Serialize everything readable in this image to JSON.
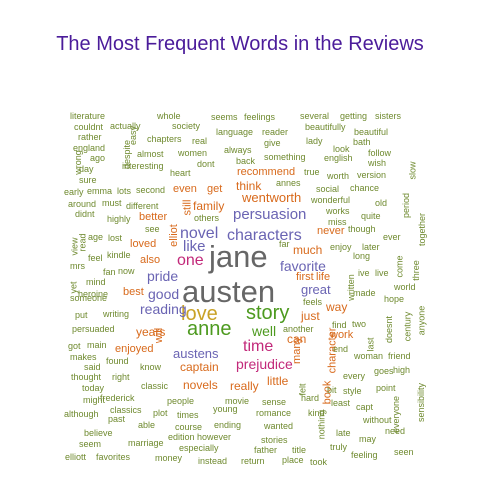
{
  "chart_data": {
    "type": "wordcloud",
    "title": "The Most Frequent Words in the Reviews",
    "colors": {
      "title": "#4b1c9a",
      "olive": "#6f8a2f",
      "teal": "#2a8f7a",
      "gray": "#666666",
      "pink": "#c2297a",
      "orange": "#d86a1c",
      "purple": "#6a64b3",
      "green": "#4d9a1f",
      "gold": "#c9a227"
    },
    "words": [
      {
        "text": "austen",
        "color": "gray",
        "rot": 0
      },
      {
        "text": "jane",
        "color": "gray",
        "rot": 0
      },
      {
        "text": "love",
        "color": "gold",
        "rot": 0
      },
      {
        "text": "anne",
        "color": "green",
        "rot": 0
      },
      {
        "text": "story",
        "color": "green",
        "rot": 0
      },
      {
        "text": "time",
        "color": "pink",
        "rot": 0
      },
      {
        "text": "characters",
        "color": "purple",
        "rot": 0
      },
      {
        "text": "novel",
        "color": "purple",
        "rot": 0
      },
      {
        "text": "one",
        "color": "pink",
        "rot": 0
      },
      {
        "text": "persuasion",
        "color": "purple",
        "rot": 0
      },
      {
        "text": "like",
        "color": "purple",
        "rot": 0
      },
      {
        "text": "pride",
        "color": "purple",
        "rot": 0
      },
      {
        "text": "good",
        "color": "purple",
        "rot": 0
      },
      {
        "text": "reading",
        "color": "purple",
        "rot": 0
      },
      {
        "text": "favorite",
        "color": "purple",
        "rot": 0
      },
      {
        "text": "prejudice",
        "color": "pink",
        "rot": 0
      },
      {
        "text": "well",
        "color": "green",
        "rot": 0
      },
      {
        "text": "wentworth",
        "color": "orange",
        "rot": 0
      },
      {
        "text": "great",
        "color": "purple",
        "rot": 0
      },
      {
        "text": "much",
        "color": "orange",
        "rot": 0
      },
      {
        "text": "austens",
        "color": "purple",
        "rot": 0
      },
      {
        "text": "captain",
        "color": "orange",
        "rot": 0
      },
      {
        "text": "can",
        "color": "orange",
        "rot": 0
      },
      {
        "text": "first",
        "color": "orange",
        "rot": 0
      },
      {
        "text": "life",
        "color": "orange",
        "rot": 0
      },
      {
        "text": "just",
        "color": "orange",
        "rot": 0
      },
      {
        "text": "way",
        "color": "orange",
        "rot": 0
      },
      {
        "text": "years",
        "color": "orange",
        "rot": 0
      },
      {
        "text": "family",
        "color": "orange",
        "rot": 0
      },
      {
        "text": "think",
        "color": "orange",
        "rot": 0
      },
      {
        "text": "recommend",
        "color": "orange",
        "rot": 0
      },
      {
        "text": "loved",
        "color": "orange",
        "rot": 0
      },
      {
        "text": "even",
        "color": "orange",
        "rot": 0
      },
      {
        "text": "get",
        "color": "orange",
        "rot": 0
      },
      {
        "text": "best",
        "color": "orange",
        "rot": 0
      },
      {
        "text": "novels",
        "color": "orange",
        "rot": 0
      },
      {
        "text": "really",
        "color": "orange",
        "rot": 0
      },
      {
        "text": "little",
        "color": "orange",
        "rot": 0
      },
      {
        "text": "work",
        "color": "orange",
        "rot": 0
      },
      {
        "text": "enjoyed",
        "color": "orange",
        "rot": 0
      },
      {
        "text": "also",
        "color": "orange",
        "rot": 0
      },
      {
        "text": "never",
        "color": "orange",
        "rot": 0
      },
      {
        "text": "will",
        "color": "orange",
        "rot": 90
      },
      {
        "text": "still",
        "color": "orange",
        "rot": 90
      },
      {
        "text": "elliot",
        "color": "orange",
        "rot": 90
      },
      {
        "text": "many",
        "color": "orange",
        "rot": 90
      },
      {
        "text": "character",
        "color": "orange",
        "rot": 90
      },
      {
        "text": "book",
        "color": "orange",
        "rot": 90
      },
      {
        "text": "better",
        "color": "orange",
        "rot": 0
      },
      {
        "text": "literature",
        "color": "olive",
        "rot": 0
      },
      {
        "text": "whole",
        "color": "olive",
        "rot": 0
      },
      {
        "text": "seems",
        "color": "olive",
        "rot": 0
      },
      {
        "text": "feelings",
        "color": "olive",
        "rot": 0
      },
      {
        "text": "several",
        "color": "olive",
        "rot": 0
      },
      {
        "text": "getting",
        "color": "olive",
        "rot": 0
      },
      {
        "text": "sisters",
        "color": "olive",
        "rot": 0
      },
      {
        "text": "couldnt",
        "color": "olive",
        "rot": 0
      },
      {
        "text": "actually",
        "color": "olive",
        "rot": 0
      },
      {
        "text": "society",
        "color": "olive",
        "rot": 0
      },
      {
        "text": "language",
        "color": "olive",
        "rot": 0
      },
      {
        "text": "reader",
        "color": "olive",
        "rot": 0
      },
      {
        "text": "beautifully",
        "color": "olive",
        "rot": 0
      },
      {
        "text": "beautiful",
        "color": "olive",
        "rot": 0
      },
      {
        "text": "rather",
        "color": "olive",
        "rot": 0
      },
      {
        "text": "chapters",
        "color": "olive",
        "rot": 0
      },
      {
        "text": "real",
        "color": "olive",
        "rot": 0
      },
      {
        "text": "give",
        "color": "olive",
        "rot": 0
      },
      {
        "text": "lady",
        "color": "olive",
        "rot": 0
      },
      {
        "text": "bath",
        "color": "olive",
        "rot": 0
      },
      {
        "text": "england",
        "color": "olive",
        "rot": 0
      },
      {
        "text": "women",
        "color": "olive",
        "rot": 0
      },
      {
        "text": "always",
        "color": "olive",
        "rot": 0
      },
      {
        "text": "look",
        "color": "olive",
        "rot": 0
      },
      {
        "text": "follow",
        "color": "olive",
        "rot": 0
      },
      {
        "text": "ago",
        "color": "olive",
        "rot": 0
      },
      {
        "text": "almost",
        "color": "olive",
        "rot": 0
      },
      {
        "text": "dont",
        "color": "olive",
        "rot": 0
      },
      {
        "text": "back",
        "color": "olive",
        "rot": 0
      },
      {
        "text": "something",
        "color": "olive",
        "rot": 0
      },
      {
        "text": "english",
        "color": "olive",
        "rot": 0
      },
      {
        "text": "wish",
        "color": "olive",
        "rot": 0
      },
      {
        "text": "day",
        "color": "olive",
        "rot": 0
      },
      {
        "text": "interesting",
        "color": "olive",
        "rot": 0
      },
      {
        "text": "heart",
        "color": "olive",
        "rot": 0
      },
      {
        "text": "true",
        "color": "olive",
        "rot": 0
      },
      {
        "text": "version",
        "color": "olive",
        "rot": 0
      },
      {
        "text": "sure",
        "color": "olive",
        "rot": 0
      },
      {
        "text": "annes",
        "color": "olive",
        "rot": 0
      },
      {
        "text": "worth",
        "color": "olive",
        "rot": 0
      },
      {
        "text": "early",
        "color": "olive",
        "rot": 0
      },
      {
        "text": "emma",
        "color": "olive",
        "rot": 0
      },
      {
        "text": "lots",
        "color": "olive",
        "rot": 0
      },
      {
        "text": "second",
        "color": "olive",
        "rot": 0
      },
      {
        "text": "social",
        "color": "olive",
        "rot": 0
      },
      {
        "text": "chance",
        "color": "olive",
        "rot": 0
      },
      {
        "text": "around",
        "color": "olive",
        "rot": 0
      },
      {
        "text": "must",
        "color": "olive",
        "rot": 0
      },
      {
        "text": "different",
        "color": "olive",
        "rot": 0
      },
      {
        "text": "wonderful",
        "color": "olive",
        "rot": 0
      },
      {
        "text": "old",
        "color": "olive",
        "rot": 0
      },
      {
        "text": "didnt",
        "color": "olive",
        "rot": 0
      },
      {
        "text": "works",
        "color": "olive",
        "rot": 0
      },
      {
        "text": "quite",
        "color": "olive",
        "rot": 0
      },
      {
        "text": "highly",
        "color": "olive",
        "rot": 0
      },
      {
        "text": "others",
        "color": "olive",
        "rot": 0
      },
      {
        "text": "miss",
        "color": "olive",
        "rot": 0
      },
      {
        "text": "age",
        "color": "olive",
        "rot": 0
      },
      {
        "text": "lost",
        "color": "olive",
        "rot": 0
      },
      {
        "text": "see",
        "color": "olive",
        "rot": 0
      },
      {
        "text": "far",
        "color": "olive",
        "rot": 0
      },
      {
        "text": "enjoy",
        "color": "olive",
        "rot": 0
      },
      {
        "text": "later",
        "color": "olive",
        "rot": 0
      },
      {
        "text": "ever",
        "color": "olive",
        "rot": 0
      },
      {
        "text": "though",
        "color": "olive",
        "rot": 0
      },
      {
        "text": "long",
        "color": "olive",
        "rot": 0
      },
      {
        "text": "feel",
        "color": "olive",
        "rot": 0
      },
      {
        "text": "kindle",
        "color": "olive",
        "rot": 0
      },
      {
        "text": "mrs",
        "color": "olive",
        "rot": 0
      },
      {
        "text": "fan",
        "color": "olive",
        "rot": 0
      },
      {
        "text": "now",
        "color": "olive",
        "rot": 0
      },
      {
        "text": "mind",
        "color": "olive",
        "rot": 0
      },
      {
        "text": "ive",
        "color": "olive",
        "rot": 0
      },
      {
        "text": "live",
        "color": "olive",
        "rot": 0
      },
      {
        "text": "someone",
        "color": "olive",
        "rot": 0
      },
      {
        "text": "heroine",
        "color": "olive",
        "rot": 0
      },
      {
        "text": "made",
        "color": "olive",
        "rot": 0
      },
      {
        "text": "world",
        "color": "olive",
        "rot": 0
      },
      {
        "text": "hope",
        "color": "olive",
        "rot": 0
      },
      {
        "text": "put",
        "color": "olive",
        "rot": 0
      },
      {
        "text": "writing",
        "color": "olive",
        "rot": 0
      },
      {
        "text": "feels",
        "color": "olive",
        "rot": 0
      },
      {
        "text": "persuaded",
        "color": "olive",
        "rot": 0
      },
      {
        "text": "another",
        "color": "olive",
        "rot": 0
      },
      {
        "text": "find",
        "color": "olive",
        "rot": 0
      },
      {
        "text": "two",
        "color": "olive",
        "rot": 0
      },
      {
        "text": "got",
        "color": "olive",
        "rot": 0
      },
      {
        "text": "main",
        "color": "olive",
        "rot": 0
      },
      {
        "text": "end",
        "color": "olive",
        "rot": 0
      },
      {
        "text": "friend",
        "color": "olive",
        "rot": 0
      },
      {
        "text": "makes",
        "color": "olive",
        "rot": 0
      },
      {
        "text": "found",
        "color": "olive",
        "rot": 0
      },
      {
        "text": "woman",
        "color": "olive",
        "rot": 0
      },
      {
        "text": "said",
        "color": "olive",
        "rot": 0
      },
      {
        "text": "know",
        "color": "olive",
        "rot": 0
      },
      {
        "text": "goes",
        "color": "olive",
        "rot": 0
      },
      {
        "text": "high",
        "color": "olive",
        "rot": 0
      },
      {
        "text": "thought",
        "color": "olive",
        "rot": 0
      },
      {
        "text": "right",
        "color": "olive",
        "rot": 0
      },
      {
        "text": "every",
        "color": "olive",
        "rot": 0
      },
      {
        "text": "point",
        "color": "olive",
        "rot": 0
      },
      {
        "text": "today",
        "color": "olive",
        "rot": 0
      },
      {
        "text": "classic",
        "color": "olive",
        "rot": 0
      },
      {
        "text": "bit",
        "color": "olive",
        "rot": 0
      },
      {
        "text": "style",
        "color": "olive",
        "rot": 0
      },
      {
        "text": "might",
        "color": "olive",
        "rot": 0
      },
      {
        "text": "frederick",
        "color": "olive",
        "rot": 0
      },
      {
        "text": "people",
        "color": "olive",
        "rot": 0
      },
      {
        "text": "movie",
        "color": "olive",
        "rot": 0
      },
      {
        "text": "sense",
        "color": "olive",
        "rot": 0
      },
      {
        "text": "hard",
        "color": "olive",
        "rot": 0
      },
      {
        "text": "least",
        "color": "olive",
        "rot": 0
      },
      {
        "text": "capt",
        "color": "olive",
        "rot": 0
      },
      {
        "text": "classics",
        "color": "olive",
        "rot": 0
      },
      {
        "text": "plot",
        "color": "olive",
        "rot": 0
      },
      {
        "text": "young",
        "color": "olive",
        "rot": 0
      },
      {
        "text": "without",
        "color": "olive",
        "rot": 0
      },
      {
        "text": "although",
        "color": "olive",
        "rot": 0
      },
      {
        "text": "past",
        "color": "olive",
        "rot": 0
      },
      {
        "text": "times",
        "color": "olive",
        "rot": 0
      },
      {
        "text": "romance",
        "color": "olive",
        "rot": 0
      },
      {
        "text": "kind",
        "color": "olive",
        "rot": 0
      },
      {
        "text": "need",
        "color": "olive",
        "rot": 0
      },
      {
        "text": "able",
        "color": "olive",
        "rot": 0
      },
      {
        "text": "course",
        "color": "olive",
        "rot": 0
      },
      {
        "text": "ending",
        "color": "olive",
        "rot": 0
      },
      {
        "text": "wanted",
        "color": "olive",
        "rot": 0
      },
      {
        "text": "late",
        "color": "olive",
        "rot": 0
      },
      {
        "text": "may",
        "color": "olive",
        "rot": 0
      },
      {
        "text": "believe",
        "color": "olive",
        "rot": 0
      },
      {
        "text": "edition",
        "color": "olive",
        "rot": 0
      },
      {
        "text": "however",
        "color": "olive",
        "rot": 0
      },
      {
        "text": "stories",
        "color": "olive",
        "rot": 0
      },
      {
        "text": "seem",
        "color": "olive",
        "rot": 0
      },
      {
        "text": "marriage",
        "color": "olive",
        "rot": 0
      },
      {
        "text": "especially",
        "color": "olive",
        "rot": 0
      },
      {
        "text": "father",
        "color": "olive",
        "rot": 0
      },
      {
        "text": "title",
        "color": "olive",
        "rot": 0
      },
      {
        "text": "truly",
        "color": "olive",
        "rot": 0
      },
      {
        "text": "feeling",
        "color": "olive",
        "rot": 0
      },
      {
        "text": "seen",
        "color": "olive",
        "rot": 0
      },
      {
        "text": "elliott",
        "color": "olive",
        "rot": 0
      },
      {
        "text": "favorites",
        "color": "olive",
        "rot": 0
      },
      {
        "text": "money",
        "color": "olive",
        "rot": 0
      },
      {
        "text": "instead",
        "color": "olive",
        "rot": 0
      },
      {
        "text": "return",
        "color": "olive",
        "rot": 0
      },
      {
        "text": "place",
        "color": "olive",
        "rot": 0
      },
      {
        "text": "took",
        "color": "olive",
        "rot": 0
      },
      {
        "text": "wrong",
        "color": "olive",
        "rot": 90
      },
      {
        "text": "despite",
        "color": "olive",
        "rot": 90
      },
      {
        "text": "easy",
        "color": "olive",
        "rot": 90
      },
      {
        "text": "slow",
        "color": "olive",
        "rot": 90
      },
      {
        "text": "period",
        "color": "olive",
        "rot": 90
      },
      {
        "text": "together",
        "color": "olive",
        "rot": 90
      },
      {
        "text": "view",
        "color": "olive",
        "rot": 90
      },
      {
        "text": "read",
        "color": "olive",
        "rot": 90
      },
      {
        "text": "yet",
        "color": "olive",
        "rot": 90
      },
      {
        "text": "come",
        "color": "olive",
        "rot": 90
      },
      {
        "text": "three",
        "color": "olive",
        "rot": 90
      },
      {
        "text": "last",
        "color": "olive",
        "rot": 90
      },
      {
        "text": "doesnt",
        "color": "olive",
        "rot": 90
      },
      {
        "text": "century",
        "color": "olive",
        "rot": 90
      },
      {
        "text": "anyone",
        "color": "olive",
        "rot": 90
      },
      {
        "text": "sensibility",
        "color": "olive",
        "rot": 90
      },
      {
        "text": "written",
        "color": "olive",
        "rot": 90
      },
      {
        "text": "felt",
        "color": "olive",
        "rot": 90
      },
      {
        "text": "nothing",
        "color": "olive",
        "rot": 90
      },
      {
        "text": "everyone",
        "color": "olive",
        "rot": 90
      }
    ]
  }
}
